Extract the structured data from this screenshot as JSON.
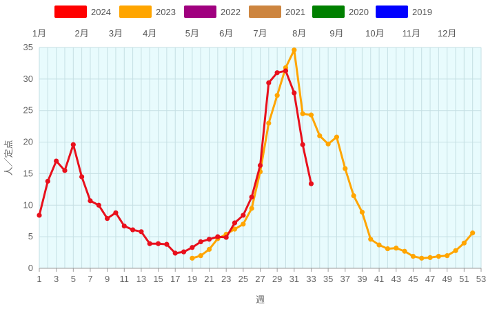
{
  "chart_data": {
    "type": "line",
    "xlabel": "週",
    "ylabel": "人／定点",
    "xlim": [
      1,
      53
    ],
    "ylim": [
      0,
      35
    ],
    "x_ticks": [
      1,
      3,
      5,
      7,
      9,
      11,
      13,
      15,
      17,
      19,
      21,
      23,
      25,
      27,
      29,
      31,
      33,
      35,
      37,
      39,
      41,
      43,
      45,
      47,
      49,
      51,
      53
    ],
    "y_ticks": [
      0,
      5,
      10,
      15,
      20,
      25,
      30,
      35
    ],
    "grid": true,
    "background_color": "#e8fbfd",
    "grid_color": "#c5dfe3",
    "month_labels": [
      {
        "label": "1月",
        "week": 1
      },
      {
        "label": "2月",
        "week": 6
      },
      {
        "label": "3月",
        "week": 10
      },
      {
        "label": "4月",
        "week": 14
      },
      {
        "label": "5月",
        "week": 19
      },
      {
        "label": "6月",
        "week": 23
      },
      {
        "label": "7月",
        "week": 27
      },
      {
        "label": "8月",
        "week": 31.6
      },
      {
        "label": "9月",
        "week": 36
      },
      {
        "label": "10月",
        "week": 40.5
      },
      {
        "label": "11月",
        "week": 44.8
      },
      {
        "label": "12月",
        "week": 49
      }
    ],
    "legend": {
      "placement": "top",
      "items": [
        {
          "name": "2024",
          "color": "#ff0000"
        },
        {
          "name": "2023",
          "color": "#ffa500"
        },
        {
          "name": "2022",
          "color": "#a0007f"
        },
        {
          "name": "2021",
          "color": "#cd853f"
        },
        {
          "name": "2020",
          "color": "#008000"
        },
        {
          "name": "2019",
          "color": "#0000ff"
        }
      ]
    },
    "series": [
      {
        "name": "2023",
        "color": "#ffa500",
        "x": [
          19,
          20,
          21,
          22,
          23,
          24,
          25,
          26,
          27,
          28,
          29,
          30,
          31,
          32,
          33,
          34,
          35,
          36,
          37,
          38,
          39,
          40,
          41,
          42,
          43,
          44,
          45,
          46,
          47,
          48,
          49,
          50,
          51,
          52
        ],
        "values": [
          1.6,
          2.0,
          3.0,
          4.7,
          5.4,
          6.2,
          7.0,
          9.5,
          15.3,
          23.0,
          27.4,
          31.8,
          34.6,
          24.5,
          24.3,
          21.0,
          19.7,
          20.8,
          15.8,
          11.5,
          8.9,
          4.6,
          3.7,
          3.1,
          3.2,
          2.7,
          1.9,
          1.6,
          1.7,
          1.9,
          2.0,
          2.8,
          4.0,
          5.6
        ]
      },
      {
        "name": "2024",
        "color": "#e8101c",
        "x": [
          1,
          2,
          3,
          4,
          5,
          6,
          7,
          8,
          9,
          10,
          11,
          12,
          13,
          14,
          15,
          16,
          17,
          18,
          19,
          20,
          21,
          22,
          23,
          24,
          25,
          26,
          27,
          28,
          29,
          30,
          31,
          32,
          33
        ],
        "values": [
          8.4,
          13.8,
          17.0,
          15.5,
          19.6,
          14.5,
          10.7,
          10.0,
          7.9,
          8.8,
          6.7,
          6.1,
          5.8,
          3.9,
          3.9,
          3.8,
          2.4,
          2.6,
          3.3,
          4.2,
          4.6,
          5.0,
          4.9,
          7.2,
          8.4,
          11.3,
          16.3,
          29.4,
          31.0,
          31.3,
          27.8,
          19.6,
          13.4
        ]
      }
    ]
  }
}
